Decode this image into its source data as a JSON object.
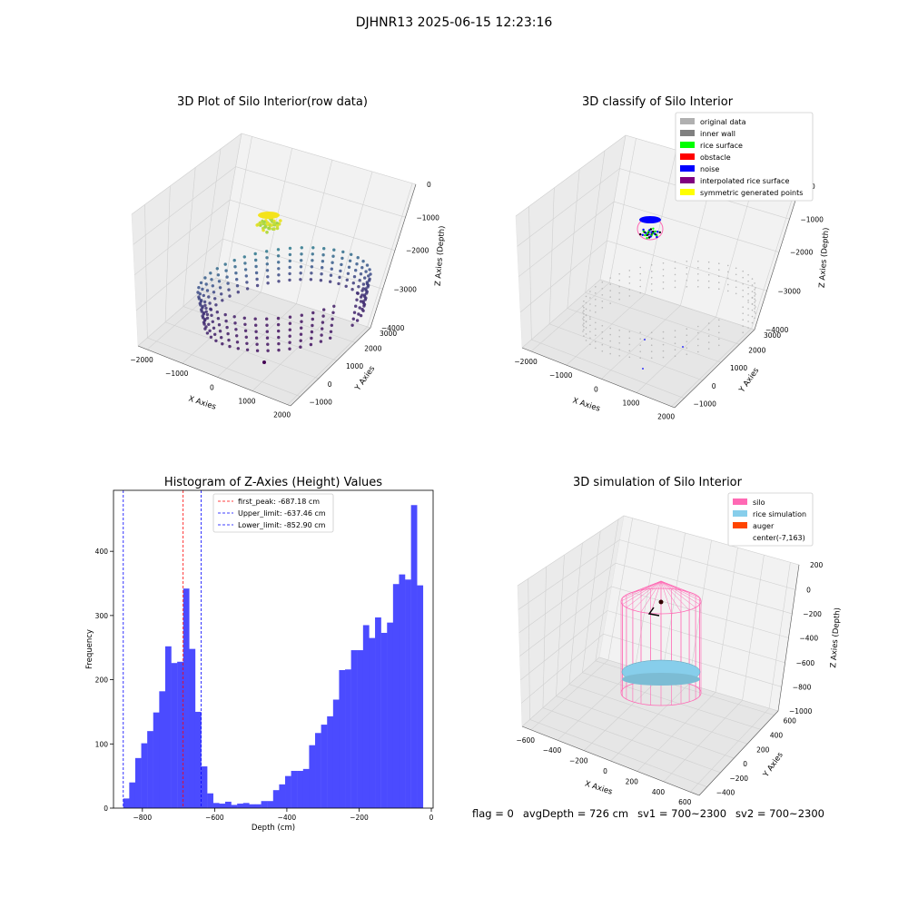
{
  "suptitle": "DJHNR13 2025-06-15 12:23:16",
  "status": {
    "flag": "flag = 0",
    "avg_depth": "avgDepth = 726 cm",
    "sv1": "sv1 = 700~2300",
    "sv2": "sv2 = 700~2300"
  },
  "chart_data": [
    {
      "type": "scatter",
      "title": "3D Plot of Silo Interior(row data)",
      "xlabel": "X Axies",
      "ylabel": "Y Axies",
      "zlabel": "Z Axies (Depth)",
      "x_ticks": [
        "−2000",
        "−1000",
        "0",
        "1000",
        "2000"
      ],
      "y_ticks": [
        "−1000",
        "0",
        "1000",
        "2000",
        "3000"
      ],
      "z_ticks": [
        "−4000",
        "−3000",
        "−2000",
        "−1000",
        "0"
      ],
      "colormap_colors": [
        "#440154",
        "#3b528b",
        "#21918c",
        "#5ec962",
        "#fde725"
      ]
    },
    {
      "type": "scatter",
      "title": "3D classify of Silo Interior",
      "xlabel": "X Axies",
      "ylabel": "Y Axies",
      "zlabel": "Z Axies (Depth)",
      "x_ticks": [
        "−2000",
        "−1000",
        "0",
        "1000",
        "2000"
      ],
      "y_ticks": [
        "−1000",
        "0",
        "1000",
        "2000",
        "3000"
      ],
      "z_ticks": [
        "−4000",
        "−3000",
        "−2000",
        "−1000",
        "0"
      ],
      "legend_position": "top-right",
      "legend": [
        {
          "label": "original data",
          "color": "#b0b0b0"
        },
        {
          "label": "inner wall",
          "color": "#808080"
        },
        {
          "label": "rice surface",
          "color": "#00ff00"
        },
        {
          "label": "obstacle",
          "color": "#ff0000"
        },
        {
          "label": "noise",
          "color": "#0000ff"
        },
        {
          "label": "interpolated rice surface",
          "color": "#800080"
        },
        {
          "label": "symmetric generated points",
          "color": "#ffff00"
        }
      ]
    },
    {
      "type": "bar",
      "title": "Histogram of Z-Axies (Height) Values",
      "xlabel": "Depth (cm)",
      "ylabel": "Frequency",
      "xlim": [
        -880,
        5
      ],
      "ylim": [
        0,
        495
      ],
      "x_ticks": [
        -800,
        -600,
        -400,
        -200,
        0
      ],
      "y_ticks": [
        0,
        100,
        200,
        300,
        400
      ],
      "bar_color": "#4b4bff",
      "bin_start": -853,
      "bin_width": 16.6,
      "values": [
        15,
        40,
        78,
        101,
        120,
        149,
        182,
        252,
        226,
        228,
        342,
        248,
        150,
        65,
        23,
        8,
        7,
        10,
        5,
        7,
        8,
        6,
        6,
        11,
        11,
        28,
        37,
        50,
        58,
        58,
        61,
        98,
        117,
        130,
        143,
        169,
        215,
        216,
        246,
        246,
        285,
        265,
        297,
        273,
        289,
        349,
        364,
        356,
        472,
        347
      ],
      "lines": [
        {
          "label": "first_peak: -687.18 cm",
          "x": -687.18,
          "color": "#ff0000"
        },
        {
          "label": "Upper_limit: -637.46 cm",
          "x": -637.46,
          "color": "#0000ff"
        },
        {
          "label": "Lower_limit: -852.90 cm",
          "x": -852.9,
          "color": "#0000ff"
        }
      ],
      "legend_position": "top-center"
    },
    {
      "type": "scatter",
      "title": "3D simulation of Silo Interior",
      "xlabel": "X Axies",
      "ylabel": "Y Axies",
      "zlabel": "Z Axies (Depth)",
      "x_ticks": [
        "−600",
        "−400",
        "−200",
        "0",
        "200",
        "400",
        "600"
      ],
      "y_ticks": [
        "−400",
        "−200",
        "0",
        "200",
        "400",
        "600"
      ],
      "z_ticks": [
        "−1000",
        "−800",
        "−600",
        "−400",
        "−200",
        "0",
        "200"
      ],
      "legend_position": "top-right",
      "legend": [
        {
          "label": "silo",
          "color": "#ff69b4"
        },
        {
          "label": "rice simulation",
          "color": "#87ceeb"
        },
        {
          "label": "auger",
          "color": "#ff4500"
        },
        {
          "label": "center(-7,163)",
          "color": "none"
        }
      ]
    }
  ]
}
